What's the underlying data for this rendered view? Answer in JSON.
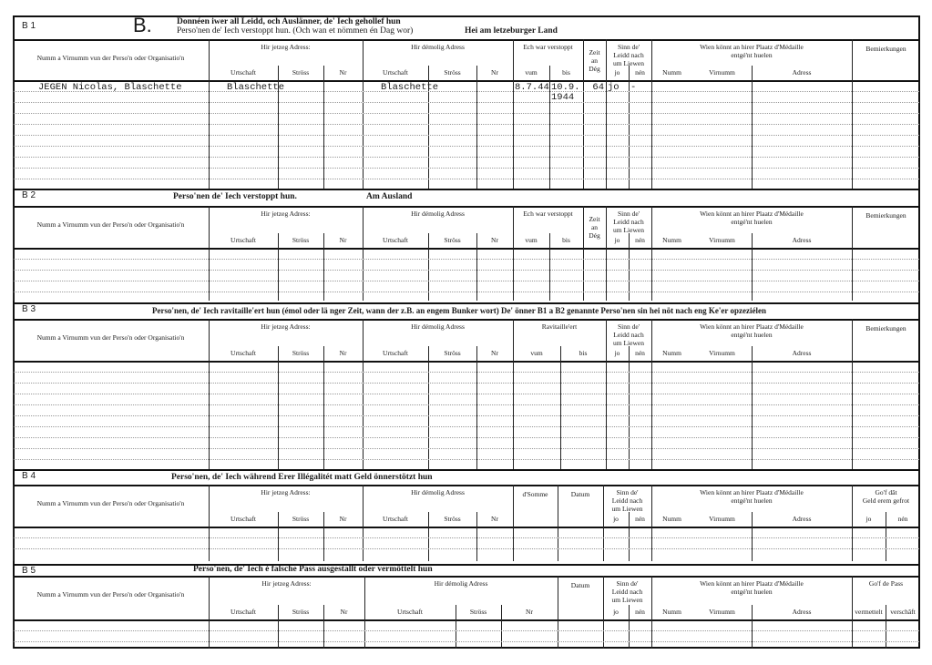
{
  "sections": [
    {
      "id": "B 1",
      "letter": "B.",
      "title_line1": "Donnéen iwer all Leidd, och Auslänner, de' Iech gehollef hun",
      "title_line2": "Perso'nen de' Iech verstoppt hun. (Och wan et nömmen én Dag wor)",
      "title_right": "Hei am letzeburger Land",
      "columns": [
        {
          "label": "Numm a Virnumm vun der Perso'n oder Organisatio'n",
          "sub": []
        },
        {
          "label": "Hir jetzeg Adress:",
          "sub": [
            "Urtschaft",
            "Ströss",
            "Nr"
          ]
        },
        {
          "label": "Hir démolig Adress",
          "sub": [
            "Urtschaft",
            "Ströss",
            "Nr"
          ]
        },
        {
          "label": "Ech war verstoppt",
          "sub": [
            "vum",
            "bis"
          ]
        },
        {
          "label": "Zeit\nan\nDég",
          "sub": []
        },
        {
          "label": "Sinn de'\nLeidd nach\num Liewen",
          "sub": [
            "jo",
            "nén"
          ]
        },
        {
          "label": "Wien könnt an hirer Plaatz d'Médaille\nentgé'nt huelen",
          "sub": [
            "Numm",
            "Virnumm",
            "Adress"
          ]
        },
        {
          "label": "Bemierkungen",
          "sub": []
        }
      ],
      "rows": [
        {
          "cells": [
            "JEGEN Nicolas, Blaschette",
            "Blaschette",
            "",
            "",
            "Blaschette",
            "",
            "",
            "8.7.44",
            "10.9.\n1944",
            "64",
            "jo",
            "-",
            "",
            "",
            "",
            ""
          ]
        }
      ]
    },
    {
      "id": "B 2",
      "title_line1": "Perso'nen de' Iech verstoppt hun.",
      "title_right": "Am Ausland",
      "columns": [
        {
          "label": "Numm a Virnumm vun der Perso'n oder Organisatio'n",
          "sub": []
        },
        {
          "label": "Hir jetzeg Adress:",
          "sub": [
            "Urtschaft",
            "Ströss",
            "Nr"
          ]
        },
        {
          "label": "Hir démolig Adress",
          "sub": [
            "Urtschaft",
            "Ströss",
            "Nr"
          ]
        },
        {
          "label": "Ech war verstoppt",
          "sub": [
            "vum",
            "bis"
          ]
        },
        {
          "label": "Zeit\nan\nDég",
          "sub": []
        },
        {
          "label": "Sinn de'\nLeidd nach\num Liewen",
          "sub": [
            "jo",
            "nén"
          ]
        },
        {
          "label": "Wien könnt an hirer Plaatz d'Médaille\nentgé'nt huelen",
          "sub": [
            "Numm",
            "Virnumm",
            "Adress"
          ]
        },
        {
          "label": "Bemierkungen",
          "sub": []
        }
      ],
      "rows": []
    },
    {
      "id": "B 3",
      "title_line1": "Perso'nen, de' Iech ravitaille'ert hun (émol oder lä nger Zeit, wann der z.B. an engem Bunker wort)  De' önner B1 a B2 genannte Perso'nen sin hei nöt nach eng Ke'er opzeziélen",
      "columns": [
        {
          "label": "Numm a Virnumm vun der Perso'n oder Organisatio'n",
          "sub": []
        },
        {
          "label": "Hir jetzeg Adress:",
          "sub": [
            "Urtschaft",
            "Ströss",
            "Nr"
          ]
        },
        {
          "label": "Hir démolig Adress",
          "sub": [
            "Urtschaft",
            "Ströss",
            "Nr"
          ]
        },
        {
          "label": "Ravitaille'ert",
          "sub": [
            "vum",
            "bis"
          ]
        },
        {
          "label": "Sinn de'\nLeidd nach\num Liewen",
          "sub": [
            "jo",
            "nén"
          ]
        },
        {
          "label": "Wien könnt an hirer Plaatz d'Médaille\nentgé'nt huelen",
          "sub": [
            "Numm",
            "Virnumm",
            "Adress"
          ]
        },
        {
          "label": "Bemierkungen",
          "sub": []
        }
      ],
      "rows": []
    },
    {
      "id": "B 4",
      "title_line1": "Perso'nen, de' Iech während Erer Illégalitét matt Geld önnerstötzt hun",
      "columns": [
        {
          "label": "Numm a Virnumm vun der Perso'n oder Organisatio'n",
          "sub": []
        },
        {
          "label": "Hir jetzeg Adress:",
          "sub": [
            "Urtschaft",
            "Ströss",
            "Nr"
          ]
        },
        {
          "label": "Hir démolig Adress",
          "sub": [
            "Urtschaft",
            "Ströss",
            "Nr"
          ]
        },
        {
          "label": "d'Somme",
          "sub": []
        },
        {
          "label": "Datum",
          "sub": []
        },
        {
          "label": "Sinn de'\nLeidd nach\num Liewen",
          "sub": [
            "jo",
            "nén"
          ]
        },
        {
          "label": "Wien könnt an hirer Plaatz d'Médaille\nentgé'nt huelen",
          "sub": [
            "Numm",
            "Virnumm",
            "Adress"
          ]
        },
        {
          "label": "Go'f dât\nGeld erem gefrot",
          "sub": [
            "jo",
            "nén"
          ]
        }
      ],
      "rows": []
    },
    {
      "id": "B 5",
      "title_line1": "Perso'nen, de' Iech é falsche Pass ausgestallt oder vermöttelt hun",
      "columns": [
        {
          "label": "Numm a Virnumm vun der Perso'n oder Organisatio'n",
          "sub": []
        },
        {
          "label": "Hir jetzeg Adress:",
          "sub": [
            "Urtschaft",
            "Ströss",
            "Nr"
          ]
        },
        {
          "label": "Hir démolig Adress",
          "sub": [
            "Urtschaft",
            "Ströss",
            "Nr"
          ]
        },
        {
          "label": "Datum",
          "sub": []
        },
        {
          "label": "Sinn de'\nLeidd nach\num Liewen",
          "sub": [
            "jo",
            "nén"
          ]
        },
        {
          "label": "Wien könnt an hirer Plaatz d'Médaille\nentgé'nt huelen",
          "sub": [
            "Numm",
            "Virnumm",
            "Adress"
          ]
        },
        {
          "label": "Go'f de Pass",
          "sub": [
            "vermettelt",
            "verschâft"
          ]
        }
      ],
      "rows": []
    }
  ]
}
